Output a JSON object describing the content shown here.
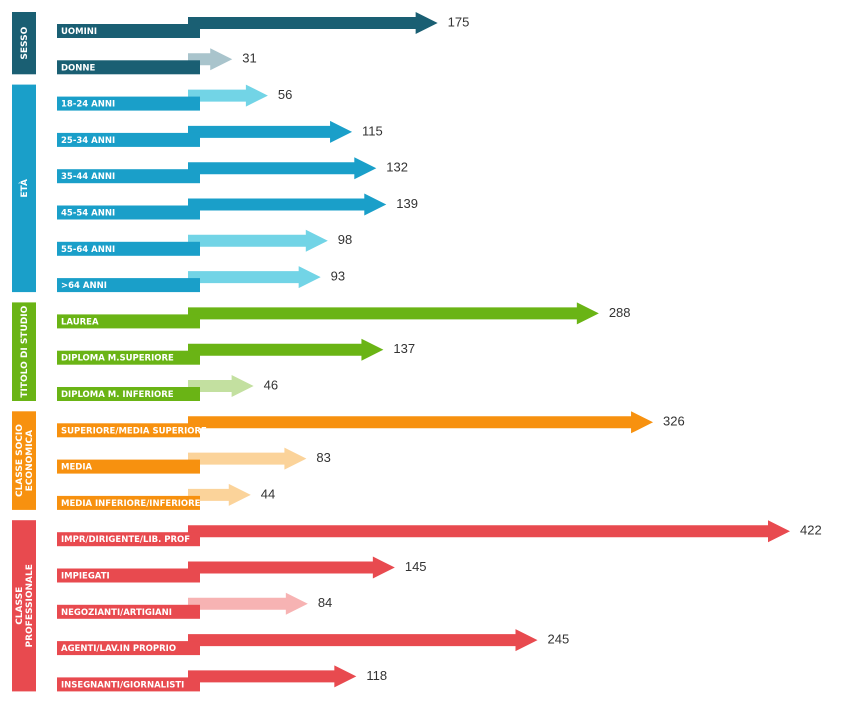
{
  "chart_data": {
    "type": "arrow-bar",
    "groups": [
      {
        "name": [
          "SESSO"
        ],
        "color": "#1a5f73",
        "categories": [
          "UOMINI",
          "DONNE"
        ],
        "values": [
          175,
          31
        ],
        "colors": [
          "#1a5f73",
          "#a9c4cc"
        ]
      },
      {
        "name": [
          "ETÀ"
        ],
        "color": "#1a9fc9",
        "categories": [
          "18-24 ANNI",
          "25-34 ANNI",
          "35-44 ANNI",
          "45-54 ANNI",
          "55-64 ANNI",
          ">64 ANNI"
        ],
        "values": [
          56,
          115,
          132,
          139,
          98,
          93
        ],
        "colors": [
          "#72d4e6",
          "#1a9fc9",
          "#1a9fc9",
          "#1a9fc9",
          "#72d4e6",
          "#72d4e6"
        ]
      },
      {
        "name": [
          "TITOLO DI STUDIO"
        ],
        "color": "#6ab415",
        "categories": [
          "LAUREA",
          "DIPLOMA M.SUPERIORE",
          "DIPLOMA M. INFERIORE"
        ],
        "values": [
          288,
          137,
          46
        ],
        "colors": [
          "#6ab415",
          "#6ab415",
          "#c3e0a0"
        ]
      },
      {
        "name": [
          "CLASSE SOCIO",
          "ECONOMICA"
        ],
        "color": "#f7910f",
        "categories": [
          "SUPERIORE/MEDIA SUPERIORE",
          "MEDIA",
          "MEDIA INFERIORE/INFERIORE"
        ],
        "values": [
          326,
          83,
          44
        ],
        "colors": [
          "#f7910f",
          "#fbd39a",
          "#fbd39a"
        ]
      },
      {
        "name": [
          "CLASSE",
          "PROFESSIONALE"
        ],
        "color": "#e84a4f",
        "categories": [
          "IMPR/DIRIGENTE/LIB. PROF",
          "IMPIEGATI",
          "NEGOZIANTI/ARTIGIANI",
          "AGENTI/LAV.IN PROPRIO",
          "INSEGNANTI/GIORNALISTI"
        ],
        "values": [
          422,
          145,
          84,
          245,
          118
        ],
        "colors": [
          "#e84a4f",
          "#e84a4f",
          "#f7b3b3",
          "#e84a4f",
          "#e84a4f"
        ]
      }
    ]
  }
}
